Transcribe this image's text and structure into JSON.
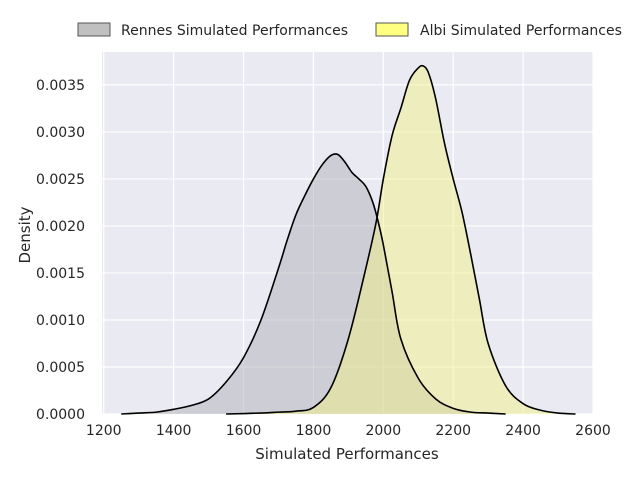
{
  "chart_data": {
    "type": "area",
    "xlabel": "Simulated Performances",
    "ylabel": "Density",
    "xlim": [
      1195,
      2600
    ],
    "ylim": [
      0,
      0.00385
    ],
    "xticks": [
      1200,
      1400,
      1600,
      1800,
      2000,
      2200,
      2400,
      2600
    ],
    "yticks": [
      0.0,
      0.0005,
      0.001,
      0.0015,
      0.002,
      0.0025,
      0.003,
      0.0035
    ],
    "ytick_labels": [
      "0.0000",
      "0.0005",
      "0.0010",
      "0.0015",
      "0.0020",
      "0.0025",
      "0.0030",
      "0.0035"
    ],
    "grid": true,
    "legend_position": "top",
    "series": [
      {
        "name": "Rennes Simulated Performances",
        "fill": "#b0b0b8",
        "legend_fill": "#c0c0c0",
        "x": [
          1250,
          1300,
          1350,
          1400,
          1450,
          1500,
          1550,
          1600,
          1650,
          1700,
          1725,
          1750,
          1775,
          1800,
          1825,
          1850,
          1870,
          1890,
          1910,
          1930,
          1950,
          1970,
          1985,
          2000,
          2025,
          2050,
          2100,
          2150,
          2200,
          2250,
          2300,
          2350
        ],
        "y": [
          0.0,
          1e-05,
          2e-05,
          5e-05,
          9e-05,
          0.00016,
          0.00034,
          0.0006,
          0.001,
          0.00155,
          0.00185,
          0.00212,
          0.00232,
          0.0025,
          0.00265,
          0.00275,
          0.00276,
          0.00268,
          0.00257,
          0.0025,
          0.00242,
          0.00225,
          0.00205,
          0.0018,
          0.0013,
          0.0008,
          0.00038,
          0.00016,
          6e-05,
          2e-05,
          1e-05,
          0.0
        ]
      },
      {
        "name": "Albi Simulated Performances",
        "fill": "#f2f08a",
        "legend_fill": "#ffff80",
        "x": [
          1550,
          1650,
          1700,
          1750,
          1800,
          1850,
          1900,
          1950,
          1980,
          2000,
          2025,
          2050,
          2075,
          2100,
          2115,
          2130,
          2150,
          2175,
          2200,
          2225,
          2250,
          2275,
          2300,
          2350,
          2400,
          2450,
          2500,
          2550
        ],
        "y": [
          0.0,
          1e-05,
          2e-05,
          3e-05,
          7e-05,
          0.00028,
          0.0008,
          0.00155,
          0.00205,
          0.0025,
          0.00296,
          0.00325,
          0.00355,
          0.00368,
          0.0037,
          0.00362,
          0.00335,
          0.00288,
          0.0025,
          0.00215,
          0.0017,
          0.00122,
          0.00075,
          0.0003,
          0.00011,
          4e-05,
          1e-05,
          0.0
        ]
      }
    ]
  }
}
